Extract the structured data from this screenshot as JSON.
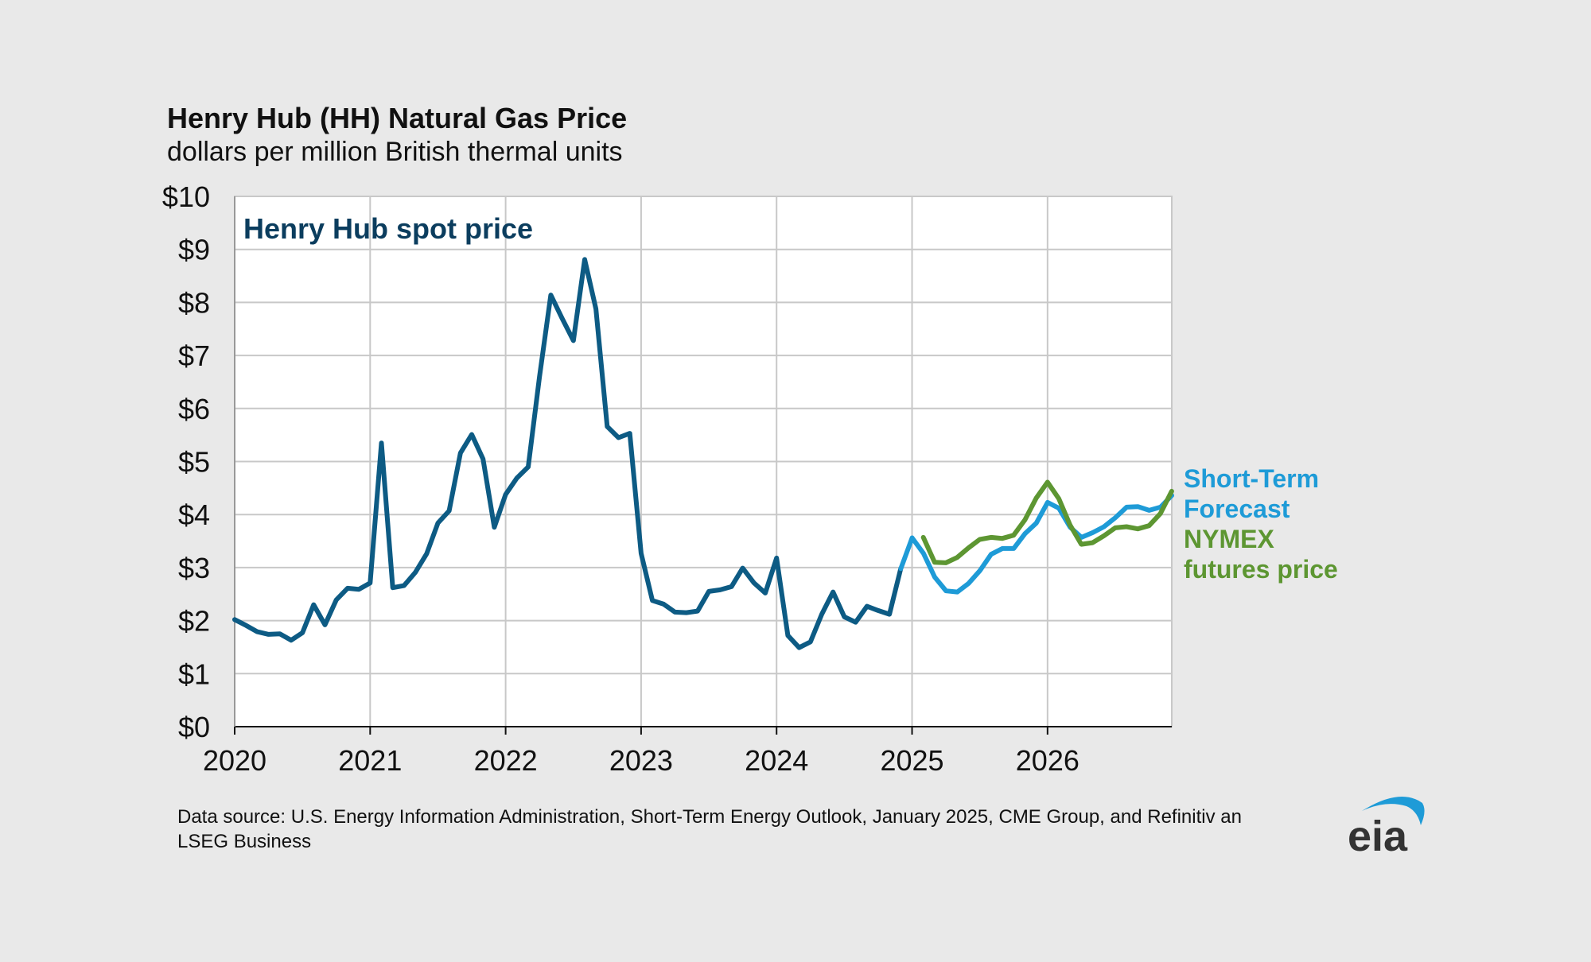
{
  "chart_data": {
    "type": "line",
    "title": "Henry Hub (HH) Natural Gas Price",
    "subtitle": "dollars per million British thermal units",
    "xlabel": "",
    "ylabel": "dollars per million British thermal units",
    "ylim": [
      0,
      10
    ],
    "xlim": [
      2020.0,
      2026.917
    ],
    "grid": true,
    "y_ticks": [
      {
        "value": 0,
        "label": "$0"
      },
      {
        "value": 1,
        "label": "$1"
      },
      {
        "value": 2,
        "label": "$2"
      },
      {
        "value": 3,
        "label": "$3"
      },
      {
        "value": 4,
        "label": "$4"
      },
      {
        "value": 5,
        "label": "$5"
      },
      {
        "value": 6,
        "label": "$6"
      },
      {
        "value": 7,
        "label": "$7"
      },
      {
        "value": 8,
        "label": "$8"
      },
      {
        "value": 9,
        "label": "$9"
      },
      {
        "value": 10,
        "label": "$10"
      }
    ],
    "x_ticks": [
      {
        "value": 2020,
        "label": "2020"
      },
      {
        "value": 2021,
        "label": "2021"
      },
      {
        "value": 2022,
        "label": "2022"
      },
      {
        "value": 2023,
        "label": "2023"
      },
      {
        "value": 2024,
        "label": "2024"
      },
      {
        "value": 2025,
        "label": "2025"
      },
      {
        "value": 2026,
        "label": "2026"
      }
    ],
    "series": [
      {
        "name": "Henry Hub spot price",
        "color": "#0d5b84",
        "label_color": "#0b3d5e",
        "start_year": 2020,
        "values": [
          2.02,
          1.91,
          1.79,
          1.74,
          1.75,
          1.63,
          1.77,
          2.3,
          1.92,
          2.39,
          2.61,
          2.59,
          2.71,
          5.35,
          2.62,
          2.66,
          2.91,
          3.26,
          3.84,
          4.07,
          5.16,
          5.51,
          5.05,
          3.76,
          4.38,
          4.69,
          4.9,
          6.6,
          8.14,
          7.7,
          7.28,
          8.81,
          7.88,
          5.66,
          5.45,
          5.53,
          3.27,
          2.38,
          2.31,
          2.16,
          2.15,
          2.18,
          2.55,
          2.58,
          2.64,
          2.99,
          2.71,
          2.52,
          3.18,
          1.72,
          1.49,
          1.6,
          2.12,
          2.54,
          2.07,
          1.97,
          2.27,
          2.19,
          2.12,
          2.98
        ]
      },
      {
        "name": "Short-Term Forecast",
        "color": "#1e9bd7",
        "start_year": 2024.917,
        "values": [
          2.98,
          3.56,
          3.27,
          2.82,
          2.56,
          2.54,
          2.7,
          2.94,
          3.25,
          3.36,
          3.36,
          3.64,
          3.84,
          4.23,
          4.12,
          3.76,
          3.57,
          3.66,
          3.77,
          3.94,
          4.14,
          4.15,
          4.08,
          4.14,
          4.36
        ]
      },
      {
        "name": "NYMEX futures price",
        "color": "#5d9632",
        "start_year": 2025.083,
        "values": [
          3.57,
          3.1,
          3.09,
          3.19,
          3.37,
          3.53,
          3.57,
          3.55,
          3.61,
          3.9,
          4.31,
          4.61,
          4.3,
          3.8,
          3.44,
          3.47,
          3.6,
          3.75,
          3.77,
          3.73,
          3.79,
          4.02,
          4.44
        ]
      }
    ],
    "annotations": {
      "spot_label": "Henry Hub spot price",
      "forecast_label_line1": "Short-Term",
      "forecast_label_line2": "Forecast",
      "nymex_label_line1": "NYMEX",
      "nymex_label_line2": "futures price"
    }
  },
  "source_note": "Data source: U.S. Energy Information Administration, Short-Term Energy Outlook, January 2025, CME Group, and Refinitiv an LSEG Business",
  "logo": {
    "text": "eia",
    "color": "#333333",
    "accent_color": "#1e9bd7"
  },
  "colors": {
    "background": "#e9e9e9",
    "plot_background": "#ffffff",
    "grid": "#c8c8c8"
  }
}
